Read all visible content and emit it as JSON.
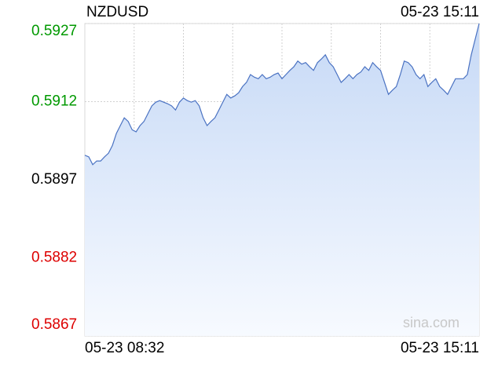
{
  "chart_data": {
    "type": "line",
    "title": "NZDUSD",
    "updated": "05-23 15:11",
    "watermark": "sina.com",
    "x_labels": [
      "05-23 08:32",
      "05-23 15:11"
    ],
    "ylim": [
      0.5867,
      0.5927
    ],
    "yticks": [
      0.5867,
      0.5882,
      0.5897,
      0.5912,
      0.5927
    ],
    "prev_close": 0.5897,
    "up_color": "#009900",
    "down_color": "#dd0000",
    "flat_color": "#000000",
    "grid": true,
    "series": [
      {
        "name": "NZDUSD",
        "color": "#4a72c2",
        "values": [
          0.59017,
          0.59014,
          0.58999,
          0.59006,
          0.59006,
          0.59014,
          0.59021,
          0.59036,
          0.59059,
          0.59074,
          0.59089,
          0.59082,
          0.59066,
          0.59062,
          0.59074,
          0.59082,
          0.59097,
          0.59112,
          0.59119,
          0.59122,
          0.59119,
          0.59116,
          0.59112,
          0.59104,
          0.59119,
          0.59127,
          0.59122,
          0.59119,
          0.59122,
          0.59112,
          0.59089,
          0.59074,
          0.59082,
          0.59089,
          0.59104,
          0.59119,
          0.59134,
          0.59127,
          0.59131,
          0.59137,
          0.59149,
          0.59157,
          0.59172,
          0.59167,
          0.59164,
          0.59172,
          0.59164,
          0.59167,
          0.59172,
          0.59175,
          0.59164,
          0.59172,
          0.5918,
          0.59187,
          0.59198,
          0.59192,
          0.59195,
          0.59187,
          0.5918,
          0.59195,
          0.59202,
          0.5921,
          0.59195,
          0.59187,
          0.59172,
          0.59157,
          0.59164,
          0.59172,
          0.59164,
          0.59172,
          0.59177,
          0.59187,
          0.5918,
          0.59195,
          0.59187,
          0.5918,
          0.59157,
          0.59134,
          0.59142,
          0.59149,
          0.59172,
          0.59198,
          0.59195,
          0.59187,
          0.59172,
          0.59164,
          0.59172,
          0.59149,
          0.59157,
          0.59164,
          0.59149,
          0.59142,
          0.59134,
          0.59149,
          0.59164,
          0.59164,
          0.59164,
          0.59172,
          0.5921,
          0.5924,
          0.5927
        ]
      }
    ]
  }
}
